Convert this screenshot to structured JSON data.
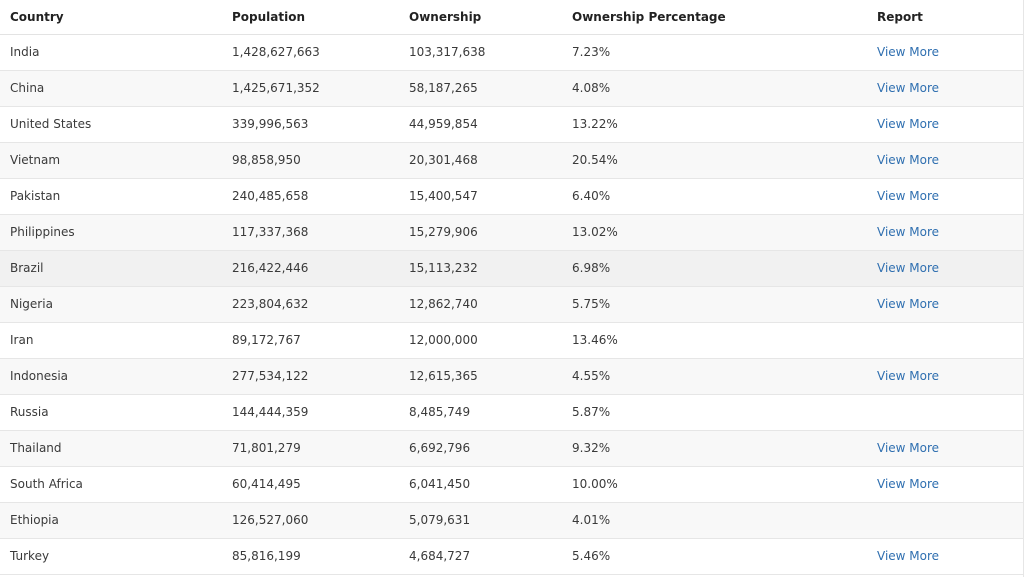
{
  "table": {
    "columns": [
      "Country",
      "Population",
      "Ownership",
      "Ownership Percentage",
      "Report"
    ],
    "rows": [
      {
        "country": "India",
        "population": "1,428,627,663",
        "ownership": "103,317,638",
        "percentage": "7.23%",
        "report": "View More"
      },
      {
        "country": "China",
        "population": "1,425,671,352",
        "ownership": "58,187,265",
        "percentage": "4.08%",
        "report": "View More"
      },
      {
        "country": "United States",
        "population": "339,996,563",
        "ownership": "44,959,854",
        "percentage": "13.22%",
        "report": "View More"
      },
      {
        "country": "Vietnam",
        "population": "98,858,950",
        "ownership": "20,301,468",
        "percentage": "20.54%",
        "report": "View More"
      },
      {
        "country": "Pakistan",
        "population": "240,485,658",
        "ownership": "15,400,547",
        "percentage": "6.40%",
        "report": "View More"
      },
      {
        "country": "Philippines",
        "population": "117,337,368",
        "ownership": "15,279,906",
        "percentage": "13.02%",
        "report": "View More"
      },
      {
        "country": "Brazil",
        "population": "216,422,446",
        "ownership": "15,113,232",
        "percentage": "6.98%",
        "report": "View More"
      },
      {
        "country": "Nigeria",
        "population": "223,804,632",
        "ownership": "12,862,740",
        "percentage": "5.75%",
        "report": "View More"
      },
      {
        "country": "Iran",
        "population": "89,172,767",
        "ownership": "12,000,000",
        "percentage": "13.46%",
        "report": ""
      },
      {
        "country": "Indonesia",
        "population": "277,534,122",
        "ownership": "12,615,365",
        "percentage": "4.55%",
        "report": "View More"
      },
      {
        "country": "Russia",
        "population": "144,444,359",
        "ownership": "8,485,749",
        "percentage": "5.87%",
        "report": ""
      },
      {
        "country": "Thailand",
        "population": "71,801,279",
        "ownership": "6,692,796",
        "percentage": "9.32%",
        "report": "View More"
      },
      {
        "country": "South Africa",
        "population": "60,414,495",
        "ownership": "6,041,450",
        "percentage": "10.00%",
        "report": "View More"
      },
      {
        "country": "Ethiopia",
        "population": "126,527,060",
        "ownership": "5,079,631",
        "percentage": "4.01%",
        "report": ""
      },
      {
        "country": "Turkey",
        "population": "85,816,199",
        "ownership": "4,684,727",
        "percentage": "5.46%",
        "report": "View More"
      }
    ]
  },
  "colors": {
    "link": "#2f6fb0",
    "stripe": "#f8f8f8",
    "hover_row": "#f1f1f1"
  }
}
